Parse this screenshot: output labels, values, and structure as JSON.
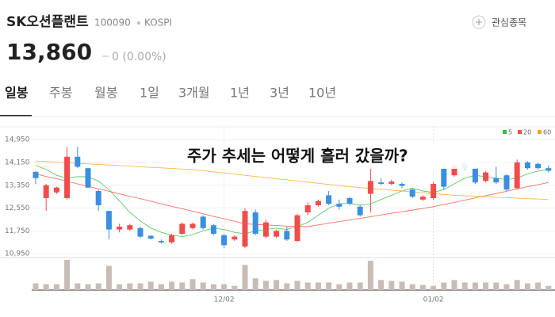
{
  "header": {
    "name": "SK오션플랜트",
    "code": "100090",
    "market": "KOSPI",
    "watch_label": "관심종목",
    "price": "13,860",
    "change": "0 (0.00%)"
  },
  "tabs": [
    "일봉",
    "주봉",
    "월봉",
    "1일",
    "3개월",
    "1년",
    "3년",
    "10년"
  ],
  "chart_data": {
    "type": "candlestick",
    "annotation": "주가 추세는 어떻게 흘러 갔을까?",
    "categories": [
      null,
      null,
      null,
      null,
      null,
      null,
      null,
      null,
      null,
      null,
      null,
      null,
      null,
      null,
      null,
      null,
      null,
      null,
      "12/02",
      null,
      null,
      null,
      null,
      null,
      null,
      null,
      null,
      null,
      null,
      null,
      null,
      null,
      null,
      null,
      null,
      null,
      null,
      null,
      "01/02",
      null,
      null,
      null,
      null,
      null,
      null,
      null,
      null,
      null,
      null,
      null
    ],
    "open": [
      13820,
      12900,
      13100,
      12900,
      14350,
      13950,
      13150,
      12450,
      11800,
      11800,
      11850,
      11580,
      11400,
      11350,
      11650,
      11850,
      12250,
      11950,
      11600,
      11450,
      11200,
      12400,
      11550,
      11550,
      11750,
      11400,
      12400,
      12650,
      13000,
      12700,
      12900,
      12600,
      13050,
      13450,
      13400,
      13400,
      13200,
      12850,
      12900,
      13950,
      13700,
      14100,
      13950,
      13500,
      13600,
      13700,
      13250,
      14150,
      14100,
      13950
    ],
    "high": [
      13850,
      13400,
      13300,
      14700,
      14700,
      13950,
      13200,
      12450,
      12000,
      12000,
      11900,
      11600,
      11450,
      11650,
      12050,
      12050,
      12300,
      12000,
      11650,
      11600,
      12550,
      12500,
      12150,
      11800,
      11900,
      12350,
      12750,
      12850,
      13150,
      12850,
      12950,
      12650,
      14300,
      13600,
      13550,
      13450,
      13250,
      13000,
      13450,
      14100,
      14150,
      14200,
      14000,
      13850,
      14000,
      13750,
      14250,
      14200,
      14150,
      14050
    ],
    "low": [
      13400,
      12450,
      13050,
      12850,
      13950,
      13250,
      12450,
      11450,
      11700,
      11750,
      11500,
      11450,
      11300,
      11300,
      11600,
      11800,
      11800,
      11600,
      11150,
      11400,
      11150,
      11600,
      11500,
      11500,
      11400,
      11350,
      12300,
      12600,
      12650,
      12500,
      12650,
      12250,
      12400,
      13350,
      13350,
      13250,
      12900,
      12800,
      12850,
      13200,
      13650,
      13900,
      13400,
      13450,
      13400,
      13150,
      13200,
      13900,
      13900,
      13800
    ],
    "close": [
      13600,
      13350,
      13270,
      14350,
      14000,
      13270,
      12650,
      11800,
      11900,
      11950,
      11550,
      11480,
      11350,
      11600,
      12000,
      12000,
      11850,
      11650,
      11250,
      11550,
      12450,
      11650,
      12050,
      11750,
      11450,
      12300,
      12650,
      12800,
      12700,
      12600,
      12700,
      12300,
      13500,
      13400,
      13480,
      13330,
      12950,
      12950,
      13400,
      13300,
      14050,
      13950,
      13450,
      13800,
      13450,
      13200,
      14150,
      13950,
      13950,
      13860
    ],
    "up_color": "#f04c4c",
    "down_color": "#3a8fe0",
    "volume": [
      8,
      7,
      7,
      36,
      8,
      7,
      8,
      29,
      7,
      8,
      8,
      10,
      7,
      10,
      9,
      13,
      9,
      7,
      7,
      5,
      30,
      14,
      11,
      12,
      8,
      11,
      9,
      9,
      9,
      7,
      9,
      9,
      35,
      12,
      11,
      10,
      7,
      6,
      5,
      9,
      12,
      9,
      9,
      9,
      9,
      7,
      12,
      8,
      9,
      5
    ],
    "volume_color": "#c9bcb6",
    "ylim": [
      10900,
      15400
    ],
    "yticks": [
      {
        "value": 10950,
        "label": "10,950"
      },
      {
        "value": 11750,
        "label": "11,750"
      },
      {
        "value": 12550,
        "label": "12,550"
      },
      {
        "value": 13350,
        "label": "13,350"
      },
      {
        "value": 14150,
        "label": "14,150"
      },
      {
        "value": 14950,
        "label": "14,950"
      }
    ],
    "legend": "top-right",
    "series": [
      {
        "name": "5",
        "color": "#35c23a",
        "values": [
          14050,
          13900,
          13700,
          13600,
          13650,
          13650,
          13500,
          13200,
          12800,
          12400,
          12100,
          11850,
          11700,
          11600,
          11550,
          11620,
          11750,
          11850,
          11800,
          11700,
          11650,
          11750,
          11800,
          11850,
          11800,
          11900,
          12050,
          12300,
          12550,
          12700,
          12720,
          12650,
          12700,
          12850,
          13000,
          13150,
          13250,
          13150,
          13100,
          13200,
          13400,
          13600,
          13700,
          13650,
          13600,
          13550,
          13600,
          13750,
          13850,
          13900
        ]
      },
      {
        "name": "20",
        "color": "#f0513c",
        "values": [
          13750,
          13660,
          13580,
          13490,
          13400,
          13310,
          13230,
          13140,
          13050,
          12960,
          12880,
          12790,
          12700,
          12610,
          12530,
          12440,
          12350,
          12260,
          12180,
          12090,
          12000,
          11980,
          11960,
          11940,
          11920,
          11910,
          11900,
          11960,
          12020,
          12080,
          12130,
          12190,
          12250,
          12310,
          12370,
          12420,
          12480,
          12540,
          12600,
          12680,
          12750,
          12830,
          12910,
          12990,
          13060,
          13140,
          13220,
          13300,
          13370,
          13450
        ]
      },
      {
        "name": "60",
        "color": "#f5a623",
        "values": [
          14200,
          14180,
          14160,
          14140,
          14120,
          14100,
          14080,
          14060,
          14040,
          14020,
          14000,
          13980,
          13960,
          13940,
          13920,
          13900,
          13860,
          13820,
          13780,
          13740,
          13700,
          13660,
          13620,
          13580,
          13540,
          13500,
          13460,
          13420,
          13380,
          13340,
          13300,
          13270,
          13240,
          13210,
          13180,
          13150,
          13120,
          13090,
          13060,
          13030,
          13000,
          12980,
          12970,
          12950,
          12930,
          12920,
          12900,
          12880,
          12870,
          12850
        ]
      }
    ]
  }
}
